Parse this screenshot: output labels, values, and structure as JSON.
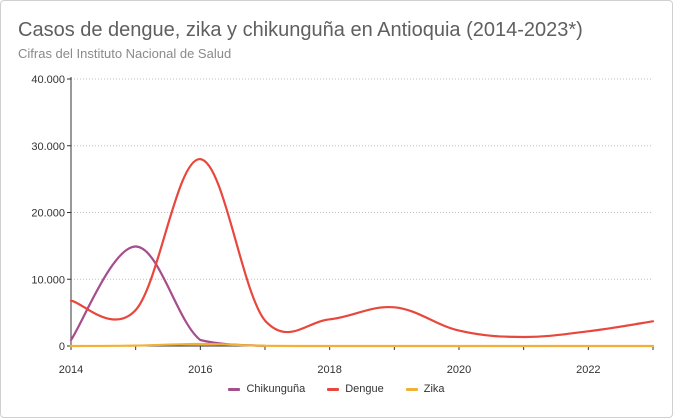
{
  "chart": {
    "title": "Casos de dengue, zika y chikunguña en Antioquia (2014-2023*)",
    "subtitle": "Cifras del Instituto Nacional de Salud"
  },
  "chart_data": {
    "type": "line",
    "title": "Casos de dengue, zika y chikunguña en Antioquia (2014-2023*)",
    "subtitle": "Cifras del Instituto Nacional de Salud",
    "xlabel": "",
    "ylabel": "",
    "xlim": [
      2014,
      2023
    ],
    "ylim": [
      0,
      40000
    ],
    "x_ticks": [
      "2014",
      "2016",
      "2018",
      "2020",
      "2022"
    ],
    "y_ticks": [
      "0",
      "10.000",
      "20.000",
      "30.000",
      "40.000"
    ],
    "grid": "horizontal dotted",
    "legend_position": "bottom-center",
    "series": [
      {
        "name": "Chikunguña",
        "color": "#a64d8c",
        "points": [
          [
            2014,
            900
          ],
          [
            2015,
            14900
          ],
          [
            2016,
            900
          ],
          [
            2017,
            0
          ]
        ]
      },
      {
        "name": "Dengue",
        "color": "#e8473d",
        "points": [
          [
            2014,
            6800
          ],
          [
            2015,
            5400
          ],
          [
            2016,
            28000
          ],
          [
            2017,
            3800
          ],
          [
            2018,
            4000
          ],
          [
            2019,
            5800
          ],
          [
            2020,
            2300
          ],
          [
            2021,
            1350
          ],
          [
            2022,
            2200
          ],
          [
            2023,
            3700
          ]
        ]
      },
      {
        "name": "Zika",
        "color": "#f2b134",
        "points": [
          [
            2014,
            0
          ],
          [
            2015,
            60
          ],
          [
            2016,
            300
          ],
          [
            2017,
            30
          ],
          [
            2018,
            0
          ],
          [
            2019,
            0
          ],
          [
            2020,
            0
          ],
          [
            2021,
            0
          ],
          [
            2022,
            0
          ],
          [
            2023,
            0
          ]
        ]
      }
    ]
  }
}
